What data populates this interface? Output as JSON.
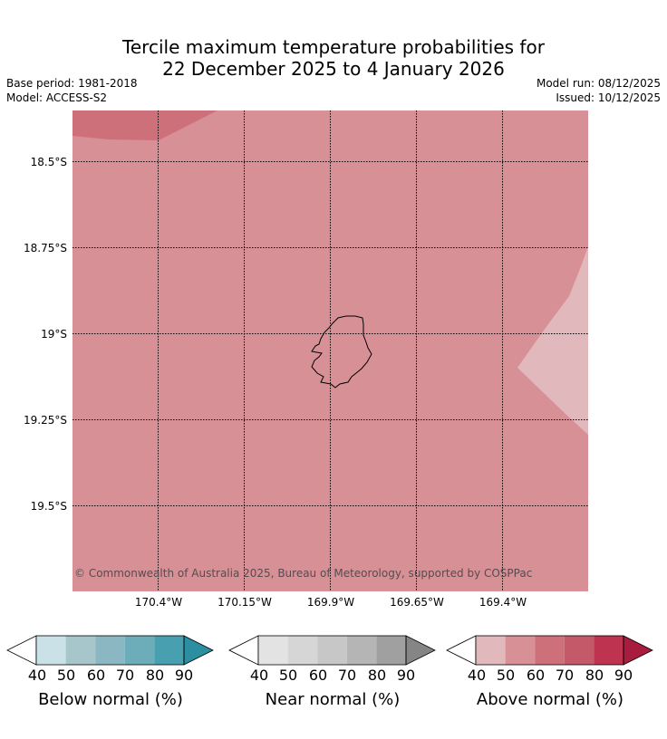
{
  "header": {
    "title_line1": "Tercile maximum temperature probabilities for",
    "title_line2": "22 December 2025 to 4 January 2026",
    "base_period": "Base period: 1981-2018",
    "model": "Model: ACCESS-S2",
    "model_run": "Model run: 08/12/2025",
    "issued": "Issued: 10/12/2025"
  },
  "map": {
    "lat_labels": [
      "18.5°S",
      "18.75°S",
      "19°S",
      "19.25°S",
      "19.5°S"
    ],
    "lon_labels": [
      "170.4°W",
      "170.15°W",
      "169.9°W",
      "169.65°W",
      "169.4°W"
    ],
    "copyright": "© Commonwealth of Australia 2025, Bureau of Meteorology, supported by COSPPac",
    "colors": {
      "base": "#d79096",
      "dark": "#ce707a",
      "light": "#e1b8bc"
    }
  },
  "legend": {
    "ticks": [
      "40",
      "50",
      "60",
      "70",
      "80",
      "90"
    ],
    "below": {
      "title": "Below normal (%)",
      "colors": [
        "#ffffff",
        "#c9e1e7",
        "#a6c6cb",
        "#8ab7c2",
        "#6dadba",
        "#489fb0",
        "#2b8ea1"
      ]
    },
    "near": {
      "title": "Near normal (%)",
      "colors": [
        "#ffffff",
        "#e3e3e3",
        "#d6d6d6",
        "#c7c7c7",
        "#b5b5b5",
        "#a0a0a0",
        "#858585"
      ]
    },
    "above": {
      "title": "Above normal (%)",
      "colors": [
        "#ffffff",
        "#e1b8bc",
        "#d79096",
        "#ce707a",
        "#c4596a",
        "#be3350",
        "#a81d3d"
      ]
    }
  }
}
